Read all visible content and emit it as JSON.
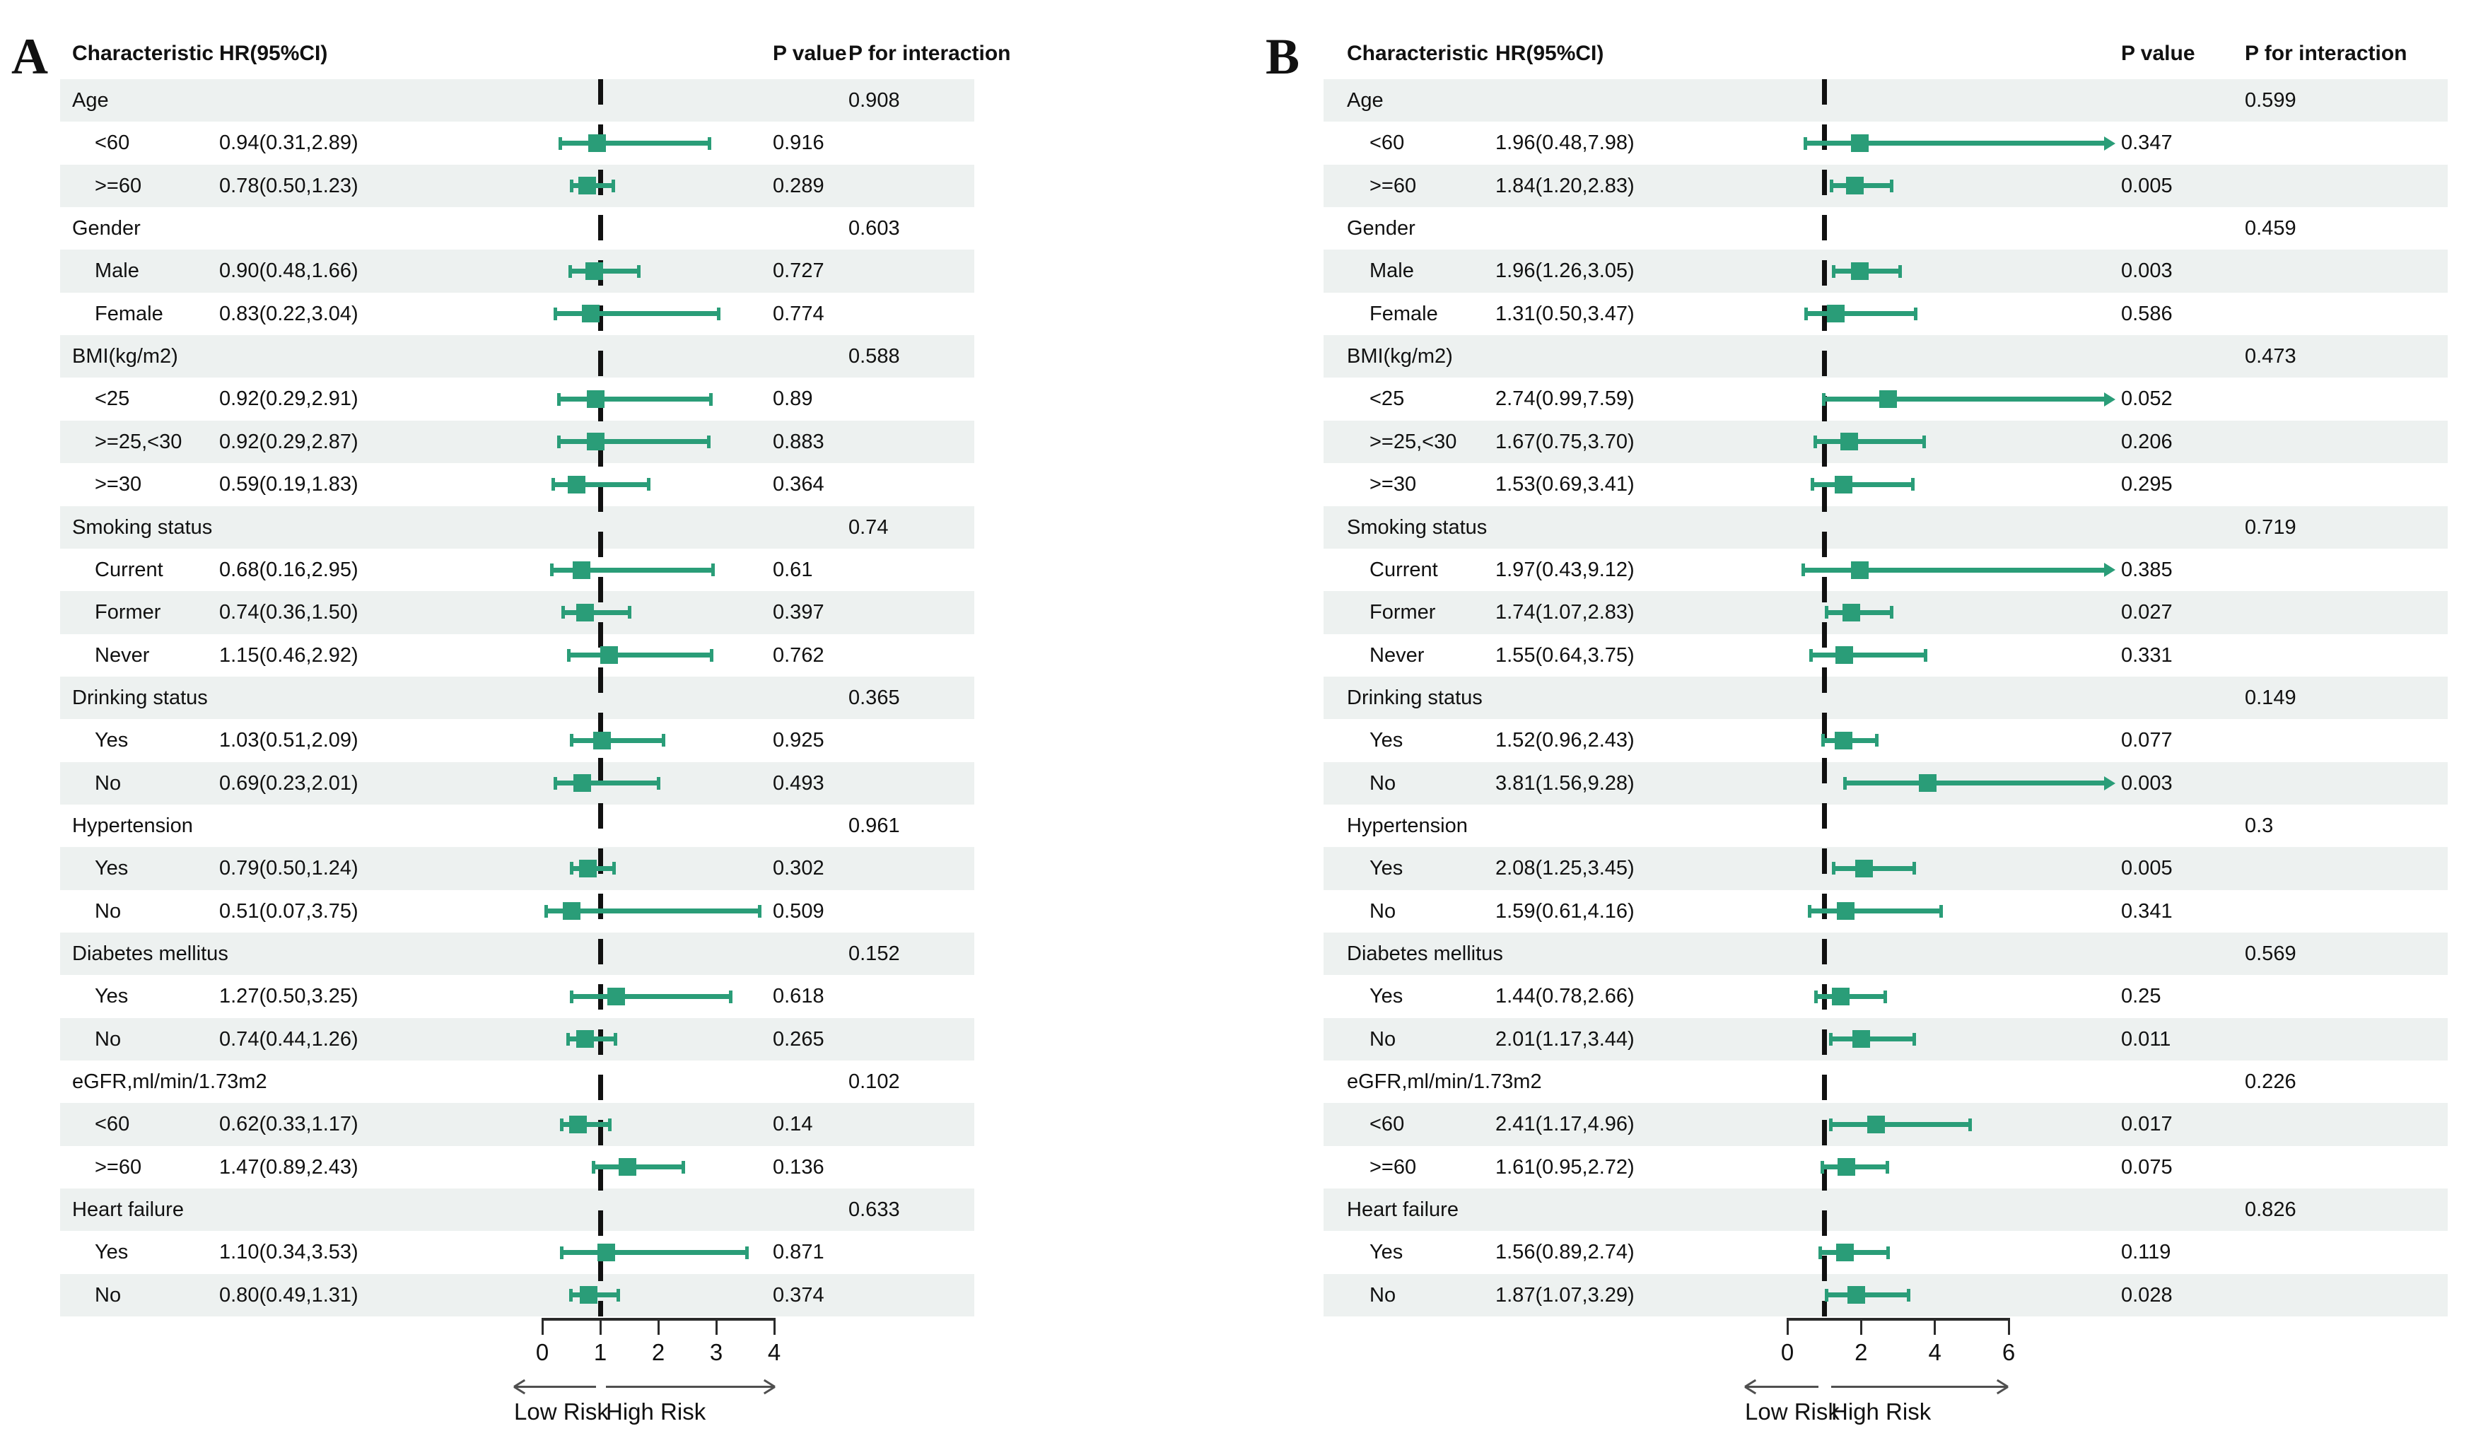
{
  "colors": {
    "marker_green": "#2a9d78",
    "row_shade": "#edf1f0",
    "text": "#111111",
    "axis_line": "#2b2b2b",
    "arrow_gray": "#4f4f4f",
    "dashed_line": "#111111",
    "background": "#ffffff"
  },
  "chart_data": [
    {
      "type": "scatter",
      "variant": "forest-plot",
      "panel_label": "A",
      "columns": {
        "characteristic": "Characteristic",
        "hr": "HR(95%CI)",
        "p_value": "P value",
        "p_interaction": "P for interaction"
      },
      "x_axis": {
        "min": 0,
        "max": 4,
        "ticks": [
          0,
          1,
          2,
          3,
          4
        ],
        "reference_line": 1,
        "low_label": "Low Risk",
        "high_label": "High Risk",
        "grid": false
      },
      "rows": [
        {
          "type": "category",
          "label": "Age",
          "p_interaction": "0.908"
        },
        {
          "type": "subgroup",
          "label": "<60",
          "hr_text": "0.94(0.31,2.89)",
          "hr": 0.94,
          "lo": 0.31,
          "hi": 2.89,
          "p": "0.916",
          "clipped": false
        },
        {
          "type": "subgroup",
          "label": ">=60",
          "hr_text": "0.78(0.50,1.23)",
          "hr": 0.78,
          "lo": 0.5,
          "hi": 1.23,
          "p": "0.289",
          "clipped": false
        },
        {
          "type": "category",
          "label": "Gender",
          "p_interaction": "0.603"
        },
        {
          "type": "subgroup",
          "label": "Male",
          "hr_text": "0.90(0.48,1.66)",
          "hr": 0.9,
          "lo": 0.48,
          "hi": 1.66,
          "p": "0.727",
          "clipped": false
        },
        {
          "type": "subgroup",
          "label": "Female",
          "hr_text": "0.83(0.22,3.04)",
          "hr": 0.83,
          "lo": 0.22,
          "hi": 3.04,
          "p": "0.774",
          "clipped": false
        },
        {
          "type": "category",
          "label": "BMI(kg/m2)",
          "p_interaction": "0.588"
        },
        {
          "type": "subgroup",
          "label": "<25",
          "hr_text": "0.92(0.29,2.91)",
          "hr": 0.92,
          "lo": 0.29,
          "hi": 2.91,
          "p": "0.89",
          "clipped": false
        },
        {
          "type": "subgroup",
          "label": ">=25,<30",
          "hr_text": "0.92(0.29,2.87)",
          "hr": 0.92,
          "lo": 0.29,
          "hi": 2.87,
          "p": "0.883",
          "clipped": false
        },
        {
          "type": "subgroup",
          "label": ">=30",
          "hr_text": "0.59(0.19,1.83)",
          "hr": 0.59,
          "lo": 0.19,
          "hi": 1.83,
          "p": "0.364",
          "clipped": false
        },
        {
          "type": "category",
          "label": "Smoking status",
          "p_interaction": "0.74"
        },
        {
          "type": "subgroup",
          "label": "Current",
          "hr_text": "0.68(0.16,2.95)",
          "hr": 0.68,
          "lo": 0.16,
          "hi": 2.95,
          "p": "0.61",
          "clipped": false
        },
        {
          "type": "subgroup",
          "label": "Former",
          "hr_text": "0.74(0.36,1.50)",
          "hr": 0.74,
          "lo": 0.36,
          "hi": 1.5,
          "p": "0.397",
          "clipped": false
        },
        {
          "type": "subgroup",
          "label": "Never",
          "hr_text": "1.15(0.46,2.92)",
          "hr": 1.15,
          "lo": 0.46,
          "hi": 2.92,
          "p": "0.762",
          "clipped": false
        },
        {
          "type": "category",
          "label": "Drinking status",
          "p_interaction": "0.365"
        },
        {
          "type": "subgroup",
          "label": "Yes",
          "hr_text": "1.03(0.51,2.09)",
          "hr": 1.03,
          "lo": 0.51,
          "hi": 2.09,
          "p": "0.925",
          "clipped": false
        },
        {
          "type": "subgroup",
          "label": "No",
          "hr_text": "0.69(0.23,2.01)",
          "hr": 0.69,
          "lo": 0.23,
          "hi": 2.01,
          "p": "0.493",
          "clipped": false
        },
        {
          "type": "category",
          "label": "Hypertension",
          "p_interaction": "0.961"
        },
        {
          "type": "subgroup",
          "label": "Yes",
          "hr_text": "0.79(0.50,1.24)",
          "hr": 0.79,
          "lo": 0.5,
          "hi": 1.24,
          "p": "0.302",
          "clipped": false
        },
        {
          "type": "subgroup",
          "label": "No",
          "hr_text": "0.51(0.07,3.75)",
          "hr": 0.51,
          "lo": 0.07,
          "hi": 3.75,
          "p": "0.509",
          "clipped": false
        },
        {
          "type": "category",
          "label": "Diabetes mellitus",
          "p_interaction": "0.152"
        },
        {
          "type": "subgroup",
          "label": "Yes",
          "hr_text": "1.27(0.50,3.25)",
          "hr": 1.27,
          "lo": 0.5,
          "hi": 3.25,
          "p": "0.618",
          "clipped": false
        },
        {
          "type": "subgroup",
          "label": "No",
          "hr_text": "0.74(0.44,1.26)",
          "hr": 0.74,
          "lo": 0.44,
          "hi": 1.26,
          "p": "0.265",
          "clipped": false
        },
        {
          "type": "category",
          "label": "eGFR,ml/min/1.73m2",
          "p_interaction": "0.102"
        },
        {
          "type": "subgroup",
          "label": "<60",
          "hr_text": "0.62(0.33,1.17)",
          "hr": 0.62,
          "lo": 0.33,
          "hi": 1.17,
          "p": "0.14",
          "clipped": false
        },
        {
          "type": "subgroup",
          "label": ">=60",
          "hr_text": "1.47(0.89,2.43)",
          "hr": 1.47,
          "lo": 0.89,
          "hi": 2.43,
          "p": "0.136",
          "clipped": false
        },
        {
          "type": "category",
          "label": "Heart failure",
          "p_interaction": "0.633"
        },
        {
          "type": "subgroup",
          "label": "Yes",
          "hr_text": "1.10(0.34,3.53)",
          "hr": 1.1,
          "lo": 0.34,
          "hi": 3.53,
          "p": "0.871",
          "clipped": false
        },
        {
          "type": "subgroup",
          "label": "No",
          "hr_text": "0.80(0.49,1.31)",
          "hr": 0.8,
          "lo": 0.49,
          "hi": 1.31,
          "p": "0.374",
          "clipped": false
        }
      ]
    },
    {
      "type": "scatter",
      "variant": "forest-plot",
      "panel_label": "B",
      "columns": {
        "characteristic": "Characteristic",
        "hr": "HR(95%CI)",
        "p_value": "P value",
        "p_interaction": "P for interaction"
      },
      "x_axis": {
        "min": 0,
        "max": 6,
        "ticks": [
          0,
          2,
          4,
          6
        ],
        "reference_line": 1,
        "low_label": "Low Risk",
        "high_label": "High Risk",
        "grid": false
      },
      "rows": [
        {
          "type": "category",
          "label": "Age",
          "p_interaction": "0.599"
        },
        {
          "type": "subgroup",
          "label": "<60",
          "hr_text": "1.96(0.48,7.98)",
          "hr": 1.96,
          "lo": 0.48,
          "hi": 7.98,
          "p": "0.347",
          "clipped": true
        },
        {
          "type": "subgroup",
          "label": ">=60",
          "hr_text": "1.84(1.20,2.83)",
          "hr": 1.84,
          "lo": 1.2,
          "hi": 2.83,
          "p": "0.005",
          "clipped": false
        },
        {
          "type": "category",
          "label": "Gender",
          "p_interaction": "0.459"
        },
        {
          "type": "subgroup",
          "label": "Male",
          "hr_text": "1.96(1.26,3.05)",
          "hr": 1.96,
          "lo": 1.26,
          "hi": 3.05,
          "p": "0.003",
          "clipped": false
        },
        {
          "type": "subgroup",
          "label": "Female",
          "hr_text": "1.31(0.50,3.47)",
          "hr": 1.31,
          "lo": 0.5,
          "hi": 3.47,
          "p": "0.586",
          "clipped": false
        },
        {
          "type": "category",
          "label": "BMI(kg/m2)",
          "p_interaction": "0.473"
        },
        {
          "type": "subgroup",
          "label": "<25",
          "hr_text": "2.74(0.99,7.59)",
          "hr": 2.74,
          "lo": 0.99,
          "hi": 7.59,
          "p": "0.052",
          "clipped": true
        },
        {
          "type": "subgroup",
          "label": ">=25,<30",
          "hr_text": "1.67(0.75,3.70)",
          "hr": 1.67,
          "lo": 0.75,
          "hi": 3.7,
          "p": "0.206",
          "clipped": false
        },
        {
          "type": "subgroup",
          "label": ">=30",
          "hr_text": "1.53(0.69,3.41)",
          "hr": 1.53,
          "lo": 0.69,
          "hi": 3.41,
          "p": "0.295",
          "clipped": false
        },
        {
          "type": "category",
          "label": "Smoking status",
          "p_interaction": "0.719"
        },
        {
          "type": "subgroup",
          "label": "Current",
          "hr_text": "1.97(0.43,9.12)",
          "hr": 1.97,
          "lo": 0.43,
          "hi": 9.12,
          "p": "0.385",
          "clipped": true
        },
        {
          "type": "subgroup",
          "label": "Former",
          "hr_text": "1.74(1.07,2.83)",
          "hr": 1.74,
          "lo": 1.07,
          "hi": 2.83,
          "p": "0.027",
          "clipped": false
        },
        {
          "type": "subgroup",
          "label": "Never",
          "hr_text": "1.55(0.64,3.75)",
          "hr": 1.55,
          "lo": 0.64,
          "hi": 3.75,
          "p": "0.331",
          "clipped": false
        },
        {
          "type": "category",
          "label": "Drinking status",
          "p_interaction": "0.149"
        },
        {
          "type": "subgroup",
          "label": "Yes",
          "hr_text": "1.52(0.96,2.43)",
          "hr": 1.52,
          "lo": 0.96,
          "hi": 2.43,
          "p": "0.077",
          "clipped": false
        },
        {
          "type": "subgroup",
          "label": "No",
          "hr_text": "3.81(1.56,9.28)",
          "hr": 3.81,
          "lo": 1.56,
          "hi": 9.28,
          "p": "0.003",
          "clipped": true
        },
        {
          "type": "category",
          "label": "Hypertension",
          "p_interaction": "0.3"
        },
        {
          "type": "subgroup",
          "label": "Yes",
          "hr_text": "2.08(1.25,3.45)",
          "hr": 2.08,
          "lo": 1.25,
          "hi": 3.45,
          "p": "0.005",
          "clipped": false
        },
        {
          "type": "subgroup",
          "label": "No",
          "hr_text": "1.59(0.61,4.16)",
          "hr": 1.59,
          "lo": 0.61,
          "hi": 4.16,
          "p": "0.341",
          "clipped": false
        },
        {
          "type": "category",
          "label": "Diabetes mellitus",
          "p_interaction": "0.569"
        },
        {
          "type": "subgroup",
          "label": "Yes",
          "hr_text": "1.44(0.78,2.66)",
          "hr": 1.44,
          "lo": 0.78,
          "hi": 2.66,
          "p": "0.25",
          "clipped": false
        },
        {
          "type": "subgroup",
          "label": "No",
          "hr_text": "2.01(1.17,3.44)",
          "hr": 2.01,
          "lo": 1.17,
          "hi": 3.44,
          "p": "0.011",
          "clipped": false
        },
        {
          "type": "category",
          "label": "eGFR,ml/min/1.73m2",
          "p_interaction": "0.226"
        },
        {
          "type": "subgroup",
          "label": "<60",
          "hr_text": "2.41(1.17,4.96)",
          "hr": 2.41,
          "lo": 1.17,
          "hi": 4.96,
          "p": "0.017",
          "clipped": false
        },
        {
          "type": "subgroup",
          "label": ">=60",
          "hr_text": "1.61(0.95,2.72)",
          "hr": 1.61,
          "lo": 0.95,
          "hi": 2.72,
          "p": "0.075",
          "clipped": false
        },
        {
          "type": "category",
          "label": "Heart failure",
          "p_interaction": "0.826"
        },
        {
          "type": "subgroup",
          "label": "Yes",
          "hr_text": "1.56(0.89,2.74)",
          "hr": 1.56,
          "lo": 0.89,
          "hi": 2.74,
          "p": "0.119",
          "clipped": false
        },
        {
          "type": "subgroup",
          "label": "No",
          "hr_text": "1.87(1.07,3.29)",
          "hr": 1.87,
          "lo": 1.07,
          "hi": 3.29,
          "p": "0.028",
          "clipped": false
        }
      ]
    }
  ]
}
